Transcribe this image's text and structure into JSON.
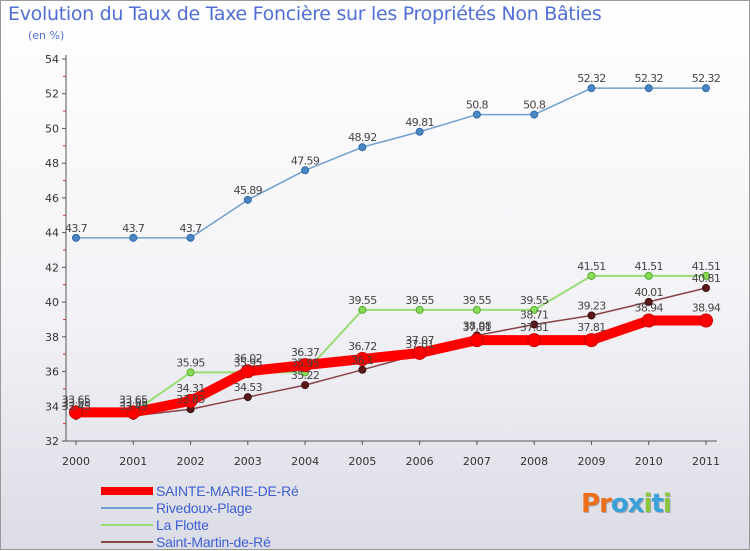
{
  "title": "Evolution du Taux de Taxe Foncière sur les Propriétés Non Bâties",
  "subtitle": "(en %)",
  "logo": {
    "text": "Proxiti",
    "colors": [
      "#ee6f1a",
      "#ee6f1a",
      "#3aa0d8",
      "#3aa0d8",
      "#8cc63f",
      "#3aa0d8",
      "#8cc63f"
    ]
  },
  "chart_data": {
    "type": "line",
    "x": [
      2000,
      2001,
      2002,
      2003,
      2004,
      2005,
      2006,
      2007,
      2008,
      2009,
      2010,
      2011
    ],
    "ylim": [
      32,
      54
    ],
    "yticks": [
      32,
      34,
      36,
      38,
      40,
      42,
      44,
      46,
      48,
      50,
      52,
      54
    ],
    "grid": false,
    "legend_position": "bottom-left",
    "series": [
      {
        "name": "SAINTE-MARIE-DE-Ré",
        "color": "#ff0000",
        "values": [
          33.65,
          33.65,
          34.31,
          36.02,
          36.37,
          36.72,
          37.07,
          37.81,
          37.81,
          37.81,
          38.94,
          38.94
        ],
        "labels": [
          "33.65",
          "33.65",
          "34.31",
          "36.02",
          "36.37",
          "36.72",
          "37.07",
          "37.81",
          "37.81",
          "37.81",
          "38.94",
          "38.94"
        ]
      },
      {
        "name": "Rivedoux-Plage",
        "color": "#6f9fd0",
        "values": [
          43.7,
          43.7,
          43.7,
          45.89,
          47.59,
          48.92,
          49.81,
          50.8,
          50.8,
          52.32,
          52.32,
          52.32
        ],
        "labels": [
          "43.7",
          "43.7",
          "43.7",
          "45.89",
          "47.59",
          "48.92",
          "49.81",
          "50.8",
          "50.8",
          "52.32",
          "52.32",
          "52.32"
        ]
      },
      {
        "name": "La Flotte",
        "color": "#99dd77",
        "values": [
          33.65,
          33.65,
          35.95,
          35.95,
          35.95,
          39.55,
          39.55,
          39.55,
          39.55,
          41.51,
          41.51,
          41.51
        ],
        "labels": [
          "33.65",
          "33.65",
          "35.95",
          "35.95",
          "35.95",
          "39.55",
          "39.55",
          "39.55",
          "39.55",
          "41.51",
          "41.51",
          "41.51"
        ]
      },
      {
        "name": "Saint-Martin-de-Ré",
        "color": "#884444",
        "values": [
          33.45,
          33.45,
          33.83,
          34.53,
          35.22,
          36.1,
          37.01,
          38.08,
          38.71,
          39.23,
          40.01,
          40.81
        ],
        "labels": [
          "33.45",
          "33.45",
          "33.83",
          "34.53",
          "35.22",
          "36.1",
          "37.01",
          "38.08",
          "38.71",
          "39.23",
          "40.01",
          "40.81"
        ]
      }
    ]
  }
}
